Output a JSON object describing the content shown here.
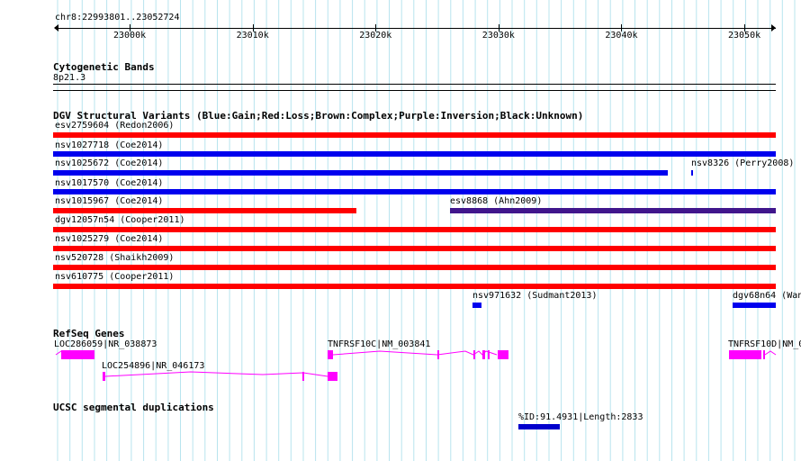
{
  "colors": {
    "gain": "#0000ee",
    "loss": "#ff0000",
    "inversion": "#40168c",
    "gene": "#ff00ff",
    "segdup": "#0000cc",
    "gridline": "#b8e4ee"
  },
  "ruler": {
    "coordinates": "chr8:22993801..23052724",
    "ticks": [
      "23000k",
      "23010k",
      "23020k",
      "23030k",
      "23040k",
      "23050k"
    ]
  },
  "cytobands": {
    "title": "Cytogenetic Bands",
    "band": "8p21.3"
  },
  "dgv": {
    "title": "DGV Structural Variants (Blue:Gain;Red:Loss;Brown:Complex;Purple:Inversion;Black:Unknown)",
    "rows": [
      [
        {
          "label": "esv2759604 (Redon2006)",
          "type": "loss"
        }
      ],
      [
        {
          "label": "nsv1027718 (Coe2014)",
          "type": "gain"
        }
      ],
      [
        {
          "label": "nsv1025672 (Coe2014)",
          "type": "gain"
        },
        {
          "label": "nsv8326 (Perry2008)",
          "type": "gain"
        }
      ],
      [
        {
          "label": "nsv1017570 (Coe2014)",
          "type": "gain"
        }
      ],
      [
        {
          "label": "nsv1015967 (Coe2014)",
          "type": "loss"
        },
        {
          "label": "esv8868 (Ahn2009)",
          "type": "inversion"
        }
      ],
      [
        {
          "label": "dgv12057n54 (Cooper2011)",
          "type": "loss"
        }
      ],
      [
        {
          "label": "nsv1025279 (Coe2014)",
          "type": "loss"
        }
      ],
      [
        {
          "label": "nsv520728 (Shaikh2009)",
          "type": "loss"
        }
      ],
      [
        {
          "label": "nsv610775 (Cooper2011)",
          "type": "loss"
        }
      ],
      [
        {
          "label": "nsv971632 (Sudmant2013)",
          "type": "gain"
        },
        {
          "label": "dgv68n64 (Wan",
          "type": "gain"
        }
      ]
    ]
  },
  "refseq": {
    "title": "RefSeq Genes",
    "genes": [
      "LOC286059|NR_038873",
      "TNFRSF10C|NM_003841",
      "TNFRSF10D|NM_0",
      "LOC254896|NR_046173"
    ]
  },
  "segdup": {
    "title": "UCSC segmental duplications",
    "items": [
      "%ID:91.4931|Length:2833"
    ]
  }
}
